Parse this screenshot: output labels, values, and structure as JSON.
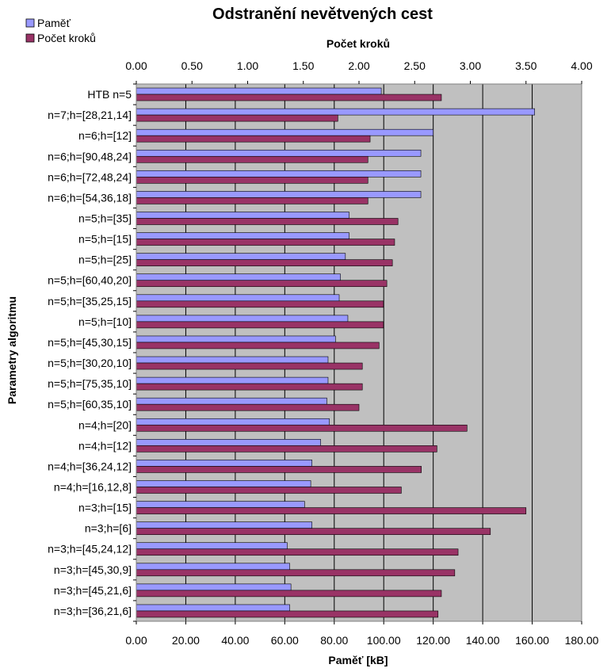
{
  "chart_data": {
    "type": "bar",
    "orientation": "horizontal",
    "title": "Odstranění nevětvených cest",
    "ylabel": "Parametry algoritmu",
    "bottom_axis": {
      "label": "Paměť  [kB]",
      "range": [
        0,
        180
      ],
      "ticks": [
        "0.00",
        "20.00",
        "40.00",
        "60.00",
        "80.00",
        "100.00",
        "120.00",
        "140.00",
        "160.00",
        "180.00"
      ]
    },
    "top_axis": {
      "label": "Počet kroků",
      "range": [
        0,
        4
      ],
      "ticks": [
        "0.00",
        "0.50",
        "1.00",
        "1.50",
        "2.00",
        "2.50",
        "3.00",
        "3.50",
        "4.00"
      ]
    },
    "legend": {
      "placement": "top-left",
      "items": [
        {
          "label": "Paměť",
          "color": "#9999ff"
        },
        {
          "label": "Počet kroků",
          "color": "#993366"
        }
      ]
    },
    "categories": [
      "HTB n=5",
      "n=7;h=[28,21,14]",
      "n=6;h=[12]",
      "n=6;h=[90,48,24]",
      "n=6;h=[72,48,24]",
      "n=6;h=[54,36,18]",
      "n=5;h=[35]",
      "n=5;h=[15]",
      "n=5;h=[25]",
      "n=5;h=[60,40,20]",
      "n=5;h=[35,25,15]",
      "n=5;h=[10]",
      "n=5;h=[45,30,15]",
      "n=5;h=[30,20,10]",
      "n=5;h=[75,35,10]",
      "n=5;h=[60,35,10]",
      "n=4;h=[20]",
      "n=4;h=[12]",
      "n=4;h=[36,24,12]",
      "n=4;h=[16,12,8]",
      "n=3;h=[15]",
      "n=3;h=[6]",
      "n=3;h=[45,24,12]",
      "n=3;h=[45,30,9]",
      "n=3;h=[45,21,6]",
      "n=3;h=[36,21,6]"
    ],
    "series": [
      {
        "name": "Paměť",
        "axis": "bottom",
        "color": "#9999ff",
        "values": [
          99,
          161,
          120,
          115,
          115,
          115,
          86,
          86,
          84.5,
          82.5,
          82,
          85.5,
          80.5,
          77.5,
          77.5,
          77,
          78,
          74.5,
          71,
          70.5,
          68,
          71,
          61,
          62,
          62.5,
          62
        ]
      },
      {
        "name": "Počet kroků",
        "axis": "top",
        "color": "#993366",
        "values": [
          2.74,
          1.81,
          2.1,
          2.08,
          2.08,
          2.08,
          2.35,
          2.32,
          2.3,
          2.25,
          2.22,
          2.22,
          2.18,
          2.03,
          2.03,
          2.0,
          2.97,
          2.7,
          2.56,
          2.38,
          3.5,
          3.18,
          2.89,
          2.86,
          2.74,
          2.71
        ]
      }
    ],
    "grid": true,
    "plot_background": "#c0c0c0"
  }
}
